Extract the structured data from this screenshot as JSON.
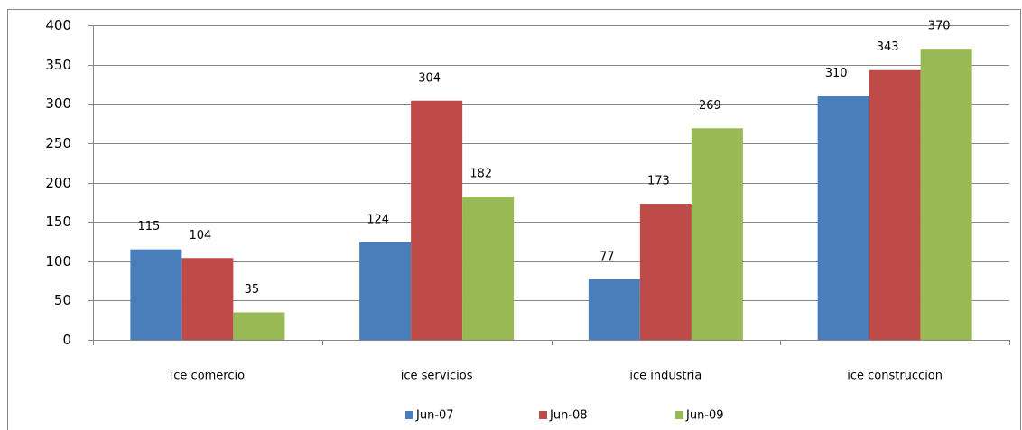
{
  "chart_data": {
    "type": "bar",
    "categories": [
      "ice comercio",
      "ice servicios",
      "ice industria",
      "ice construccion"
    ],
    "series": [
      {
        "name": "Jun-07",
        "color": "#4a7ebb",
        "values": [
          115,
          124,
          77,
          310
        ]
      },
      {
        "name": "Jun-08",
        "color": "#be4b48",
        "values": [
          104,
          304,
          173,
          343
        ]
      },
      {
        "name": "Jun-09",
        "color": "#98b954",
        "values": [
          35,
          182,
          269,
          370
        ]
      }
    ],
    "ylim": [
      0,
      400
    ],
    "yticks": [
      0,
      50,
      100,
      150,
      200,
      250,
      300,
      350,
      400
    ],
    "grid": true,
    "legend": "bottom",
    "data_labels": true
  }
}
